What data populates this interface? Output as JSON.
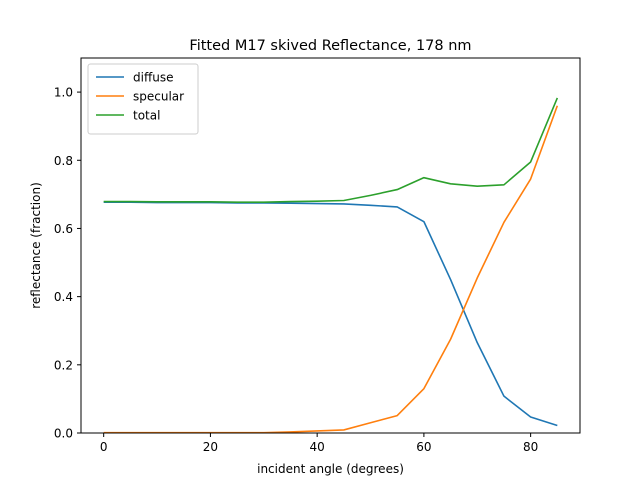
{
  "chart_data": {
    "type": "line",
    "title": "Fitted M17 skived Reflectance, 178 nm",
    "xlabel": "incident angle (degrees)",
    "ylabel": "reflectance (fraction)",
    "xlim": [
      -4.25,
      89.25
    ],
    "ylim": [
      0,
      1.1
    ],
    "xticks": [
      0,
      20,
      40,
      60,
      80
    ],
    "yticks": [
      0.0,
      0.2,
      0.4,
      0.6,
      0.8,
      1.0
    ],
    "xtick_labels": [
      "0",
      "20",
      "40",
      "60",
      "80"
    ],
    "ytick_labels": [
      "0.0",
      "0.2",
      "0.4",
      "0.6",
      "0.8",
      "1.0"
    ],
    "legend_position": "top-left",
    "grid": false,
    "x": [
      0,
      5,
      10,
      15,
      20,
      25,
      30,
      35,
      40,
      45,
      50,
      55,
      60,
      65,
      70,
      75,
      80,
      85
    ],
    "series": [
      {
        "name": "diffuse",
        "color": "#1f77b4",
        "values": [
          0.677,
          0.677,
          0.676,
          0.676,
          0.676,
          0.675,
          0.675,
          0.674,
          0.673,
          0.672,
          0.668,
          0.663,
          0.62,
          0.45,
          0.265,
          0.108,
          0.047,
          0.022
        ]
      },
      {
        "name": "specular",
        "color": "#ff7f0e",
        "values": [
          0.001,
          0.001,
          0.001,
          0.001,
          0.001,
          0.001,
          0.001,
          0.003,
          0.006,
          0.009,
          0.03,
          0.051,
          0.13,
          0.275,
          0.455,
          0.618,
          0.745,
          0.96
        ]
      },
      {
        "name": "total",
        "color": "#2ca02c",
        "values": [
          0.679,
          0.679,
          0.678,
          0.678,
          0.678,
          0.677,
          0.677,
          0.679,
          0.68,
          0.682,
          0.697,
          0.714,
          0.749,
          0.731,
          0.724,
          0.728,
          0.795,
          0.983
        ]
      }
    ]
  }
}
